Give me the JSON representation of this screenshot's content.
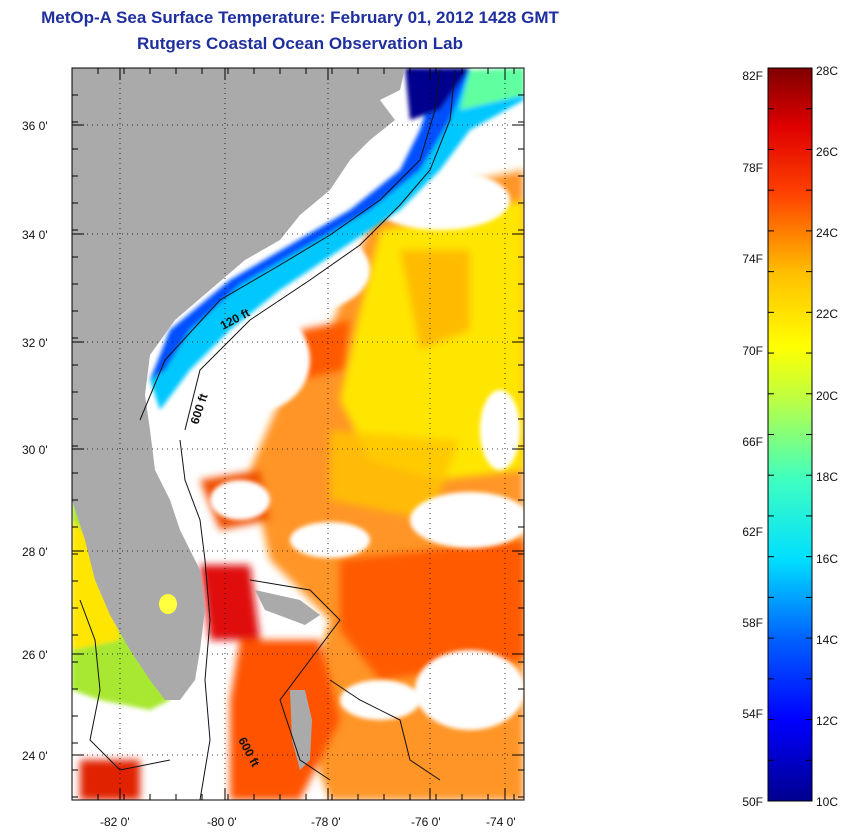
{
  "header": {
    "title": "MetOp-A Sea Surface Temperature:  February 01, 2012 1428 GMT",
    "subtitle": "Rutgers Coastal Ocean Observation Lab"
  },
  "map": {
    "lat_ticks": [
      "36 0'",
      "34 0'",
      "32 0'",
      "30 0'",
      "28 0'",
      "26 0'",
      "24 0'"
    ],
    "lon_ticks": [
      "-82 0'",
      "-80 0'",
      "-78 0'",
      "-76 0'",
      "-74 0'"
    ],
    "contour_labels": [
      "120 ft",
      "600 ft",
      "600 ft"
    ],
    "extent": {
      "lon": [
        -83,
        -72.7
      ],
      "lat": [
        23,
        37
      ]
    }
  },
  "colorbar": {
    "fahrenheit_labels": [
      "82F",
      "78F",
      "74F",
      "70F",
      "66F",
      "62F",
      "58F",
      "54F",
      "50F"
    ],
    "celsius_labels": [
      "28C",
      "26C",
      "24C",
      "22C",
      "20C",
      "18C",
      "16C",
      "14C",
      "12C",
      "10C"
    ],
    "range_c": [
      10,
      28
    ]
  },
  "colors": {
    "title": "#1f2f9e",
    "land": "#aaaaaa",
    "cloud": "#ffffff"
  }
}
